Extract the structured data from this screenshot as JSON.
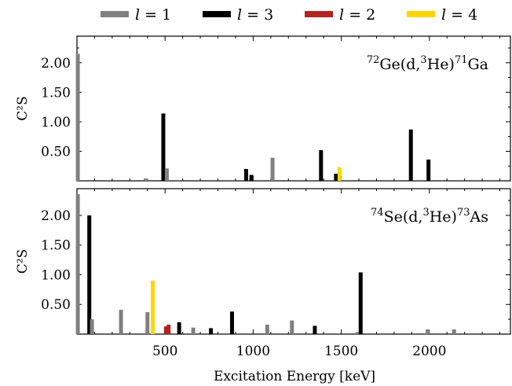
{
  "chart_data": {
    "type": "bar",
    "xlabel": "Excitation Energy [keV]",
    "xlim": [
      0,
      2460
    ],
    "xticks": [
      500,
      1000,
      1500,
      2000
    ],
    "legend": {
      "placement": "top",
      "entries": [
        {
          "symbol": "l",
          "value": "1",
          "color": "#808080"
        },
        {
          "symbol": "l",
          "value": "3",
          "color": "#000000"
        },
        {
          "symbol": "l",
          "value": "2",
          "color": "#b22222"
        },
        {
          "symbol": "l",
          "value": "4",
          "color": "#ffd700"
        }
      ]
    },
    "panels": [
      {
        "ylabel": "C²S",
        "ylim": [
          0,
          2.45
        ],
        "yticks": [
          "0.50",
          "1.00",
          "1.50",
          "2.00"
        ],
        "annotation": {
          "mass1": "72",
          "part1": "Ge(d,",
          "mass2": "3",
          "part2": "He)",
          "mass3": "71",
          "part3": "Ga"
        },
        "bars": [
          {
            "x": 5,
            "value": 2.15,
            "l": 1
          },
          {
            "x": 390,
            "value": 0.04,
            "l": 1
          },
          {
            "x": 490,
            "value": 1.14,
            "l": 3
          },
          {
            "x": 510,
            "value": 0.21,
            "l": 1
          },
          {
            "x": 960,
            "value": 0.2,
            "l": 3
          },
          {
            "x": 990,
            "value": 0.1,
            "l": 3
          },
          {
            "x": 1110,
            "value": 0.39,
            "l": 1
          },
          {
            "x": 1385,
            "value": 0.52,
            "l": 3
          },
          {
            "x": 1470,
            "value": 0.12,
            "l": 3
          },
          {
            "x": 1490,
            "value": 0.23,
            "l": 4
          },
          {
            "x": 1895,
            "value": 0.87,
            "l": 3
          },
          {
            "x": 1995,
            "value": 0.36,
            "l": 3
          }
        ]
      },
      {
        "ylabel": "C²S",
        "ylim": [
          0,
          2.45
        ],
        "yticks": [
          "0.50",
          "1.00",
          "1.50",
          "2.00"
        ],
        "annotation": {
          "mass1": "74",
          "part1": "Se(d,",
          "mass2": "3",
          "part2": "He)",
          "mass3": "73",
          "part3": "As"
        },
        "bars": [
          {
            "x": 5,
            "value": 2.36,
            "l": 1
          },
          {
            "x": 70,
            "value": 2.0,
            "l": 3
          },
          {
            "x": 85,
            "value": 0.25,
            "l": 1
          },
          {
            "x": 250,
            "value": 0.41,
            "l": 1
          },
          {
            "x": 400,
            "value": 0.37,
            "l": 1
          },
          {
            "x": 430,
            "value": 0.9,
            "l": 4
          },
          {
            "x": 505,
            "value": 0.13,
            "l": 2
          },
          {
            "x": 520,
            "value": 0.16,
            "l": 2
          },
          {
            "x": 580,
            "value": 0.2,
            "l": 3
          },
          {
            "x": 660,
            "value": 0.11,
            "l": 1
          },
          {
            "x": 760,
            "value": 0.1,
            "l": 3
          },
          {
            "x": 880,
            "value": 0.38,
            "l": 3
          },
          {
            "x": 1080,
            "value": 0.16,
            "l": 1
          },
          {
            "x": 1220,
            "value": 0.23,
            "l": 1
          },
          {
            "x": 1350,
            "value": 0.14,
            "l": 3
          },
          {
            "x": 1590,
            "value": 0.03,
            "l": 1
          },
          {
            "x": 1610,
            "value": 1.04,
            "l": 3
          },
          {
            "x": 1990,
            "value": 0.08,
            "l": 1
          },
          {
            "x": 2140,
            "value": 0.08,
            "l": 1
          }
        ]
      }
    ]
  }
}
